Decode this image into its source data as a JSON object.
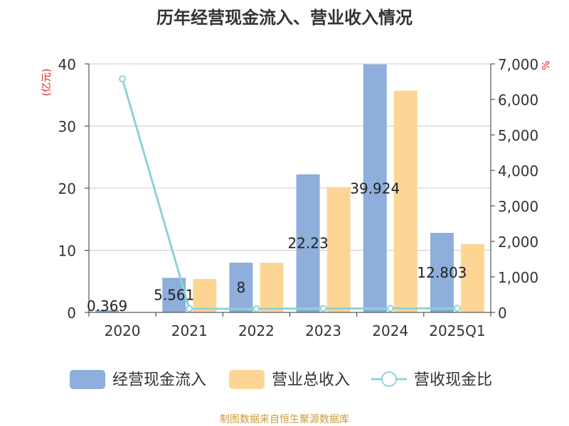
{
  "chart_data": {
    "type": "bar",
    "title": "历年经营现金流入、营业收入情况",
    "categories": [
      "2020",
      "2021",
      "2022",
      "2023",
      "2024",
      "2025Q1"
    ],
    "y_left": {
      "unit_label": "(亿元)",
      "ticks": [
        "0",
        "10",
        "20",
        "30",
        "40"
      ],
      "ylim": [
        0,
        40
      ]
    },
    "y_right": {
      "unit_label": "%",
      "ticks": [
        "0",
        "1,000",
        "2,000",
        "3,000",
        "4,000",
        "5,000",
        "6,000",
        "7,000"
      ],
      "ylim": [
        0,
        7000
      ]
    },
    "series": [
      {
        "name": "经营现金流入",
        "kind": "bar",
        "axis": "left",
        "color": "#8eaedb",
        "values": [
          0.369,
          5.561,
          8,
          22.23,
          39.924,
          12.803
        ],
        "data_labels": [
          "0.369",
          "5.561",
          "8",
          "22.23",
          "39.924",
          "12.803"
        ]
      },
      {
        "name": "营业总收入",
        "kind": "bar",
        "axis": "left",
        "color": "#fdd696",
        "values": [
          0,
          5.4,
          8.0,
          20.2,
          35.7,
          11.0
        ]
      },
      {
        "name": "营收现金比",
        "kind": "line",
        "axis": "right",
        "color": "#8dd3d5",
        "values": [
          6580,
          103,
          100,
          110,
          112,
          116
        ]
      }
    ],
    "legend_position": "bottom",
    "grid": true,
    "source": "制图数据来自恒生聚源数据库",
    "colors": {
      "title": "#333333",
      "axis_text": "#333333",
      "unit_red": "#e0211f",
      "grid": "#cccccc",
      "source": "#c89b3c"
    }
  }
}
